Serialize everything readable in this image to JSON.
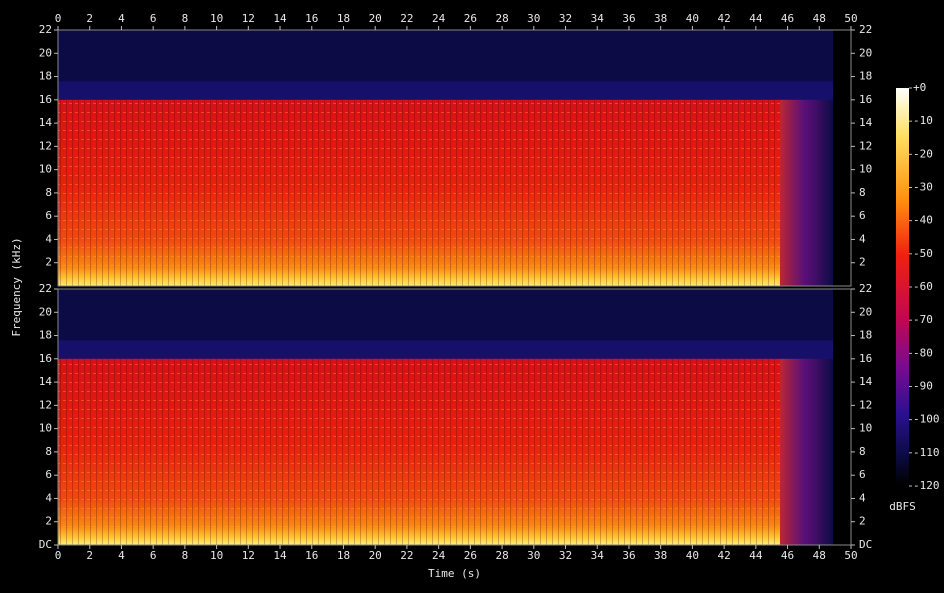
{
  "chart_data": [
    {
      "type": "spectrogram",
      "ylabel": "Frequency (kHz)",
      "xlim": [
        0,
        50
      ],
      "xticks": [
        0,
        2,
        4,
        6,
        8,
        10,
        12,
        14,
        16,
        18,
        20,
        22,
        24,
        26,
        28,
        30,
        32,
        34,
        36,
        38,
        40,
        42,
        44,
        46,
        48,
        50
      ],
      "ylim": [
        0,
        22
      ],
      "yticks": [
        2,
        4,
        6,
        8,
        10,
        12,
        14,
        16,
        18,
        20,
        22
      ]
    },
    {
      "type": "spectrogram",
      "xlabel": "Time (s)",
      "xlim": [
        0,
        50
      ],
      "xticks": [
        0,
        2,
        4,
        6,
        8,
        10,
        12,
        14,
        16,
        18,
        20,
        22,
        24,
        26,
        28,
        30,
        32,
        34,
        36,
        38,
        40,
        42,
        44,
        46,
        48,
        50
      ],
      "ylim": [
        0,
        22
      ],
      "yticks": [
        {
          "value": 0,
          "label": "DC"
        },
        2,
        4,
        6,
        8,
        10,
        12,
        14,
        16,
        18,
        20,
        22
      ],
      "colorbar": {
        "label": "dBFS",
        "lim": [
          -120,
          0
        ],
        "ticks": [
          {
            "value": 0,
            "label": "+0"
          },
          -10,
          -20,
          -30,
          -40,
          -50,
          -60,
          -70,
          -80,
          -90,
          -100,
          -110,
          -120
        ]
      }
    }
  ]
}
